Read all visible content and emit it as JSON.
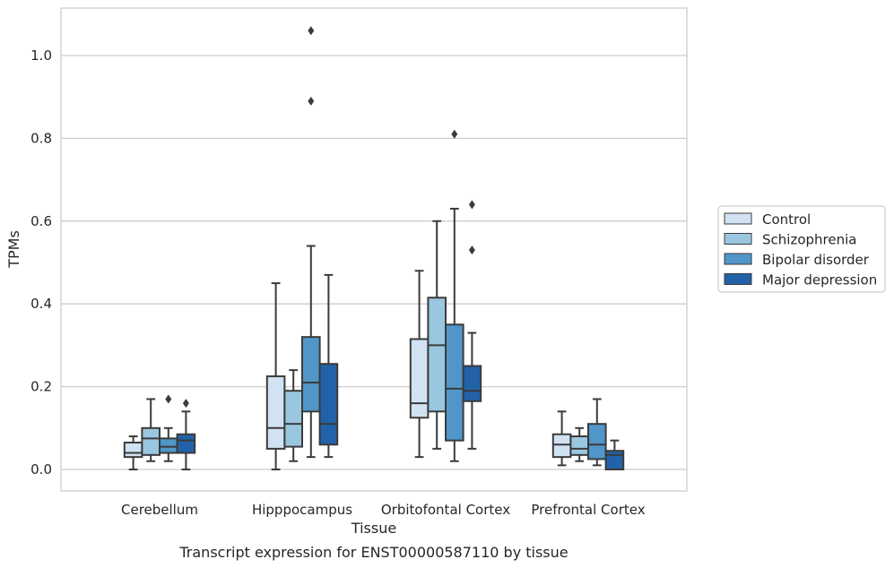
{
  "caption": "Transcript expression for ENST00000587110 by tissue",
  "chart_data": {
    "type": "box",
    "xlabel": "Tissue",
    "ylabel": "TPMs",
    "ylim": [
      -0.05,
      1.12
    ],
    "y_ticks": [
      "0.0",
      "0.2",
      "0.4",
      "0.6",
      "0.8",
      "1.0"
    ],
    "categories": [
      "Cerebellum",
      "Hipppocampus",
      "Orbitofontal Cortex",
      "Prefrontal Cortex"
    ],
    "grid": "horizontal",
    "legend_position": "right",
    "series": [
      {
        "name": "Control",
        "color": "#d1e2f2",
        "boxes": [
          {
            "min": 0.0,
            "q1": 0.03,
            "median": 0.04,
            "q3": 0.065,
            "max": 0.08,
            "outliers": []
          },
          {
            "min": 0.0,
            "q1": 0.05,
            "median": 0.1,
            "q3": 0.225,
            "max": 0.45,
            "outliers": []
          },
          {
            "min": 0.03,
            "q1": 0.125,
            "median": 0.16,
            "q3": 0.315,
            "max": 0.48,
            "outliers": []
          },
          {
            "min": 0.01,
            "q1": 0.03,
            "median": 0.06,
            "q3": 0.085,
            "max": 0.14,
            "outliers": []
          }
        ]
      },
      {
        "name": "Schizophrenia",
        "color": "#9ac7e0",
        "boxes": [
          {
            "min": 0.02,
            "q1": 0.035,
            "median": 0.075,
            "q3": 0.1,
            "max": 0.17,
            "outliers": []
          },
          {
            "min": 0.02,
            "q1": 0.055,
            "median": 0.11,
            "q3": 0.19,
            "max": 0.24,
            "outliers": []
          },
          {
            "min": 0.05,
            "q1": 0.14,
            "median": 0.3,
            "q3": 0.415,
            "max": 0.6,
            "outliers": []
          },
          {
            "min": 0.02,
            "q1": 0.035,
            "median": 0.05,
            "q3": 0.08,
            "max": 0.1,
            "outliers": []
          }
        ]
      },
      {
        "name": "Bipolar disorder",
        "color": "#5096c8",
        "boxes": [
          {
            "min": 0.02,
            "q1": 0.04,
            "median": 0.055,
            "q3": 0.075,
            "max": 0.1,
            "outliers": [
              0.17
            ]
          },
          {
            "min": 0.03,
            "q1": 0.14,
            "median": 0.21,
            "q3": 0.32,
            "max": 0.54,
            "outliers": [
              0.89,
              1.06
            ]
          },
          {
            "min": 0.02,
            "q1": 0.07,
            "median": 0.195,
            "q3": 0.35,
            "max": 0.63,
            "outliers": [
              0.81
            ]
          },
          {
            "min": 0.01,
            "q1": 0.025,
            "median": 0.06,
            "q3": 0.11,
            "max": 0.17,
            "outliers": []
          }
        ]
      },
      {
        "name": "Major depression",
        "color": "#2262a8",
        "boxes": [
          {
            "min": 0.0,
            "q1": 0.04,
            "median": 0.07,
            "q3": 0.085,
            "max": 0.14,
            "outliers": [
              0.16
            ]
          },
          {
            "min": 0.03,
            "q1": 0.06,
            "median": 0.11,
            "q3": 0.255,
            "max": 0.47,
            "outliers": []
          },
          {
            "min": 0.05,
            "q1": 0.165,
            "median": 0.19,
            "q3": 0.25,
            "max": 0.33,
            "outliers": [
              0.53,
              0.64
            ]
          },
          {
            "min": 0.0,
            "q1": 0.0,
            "median": 0.035,
            "q3": 0.045,
            "max": 0.07,
            "outliers": []
          }
        ]
      }
    ]
  }
}
